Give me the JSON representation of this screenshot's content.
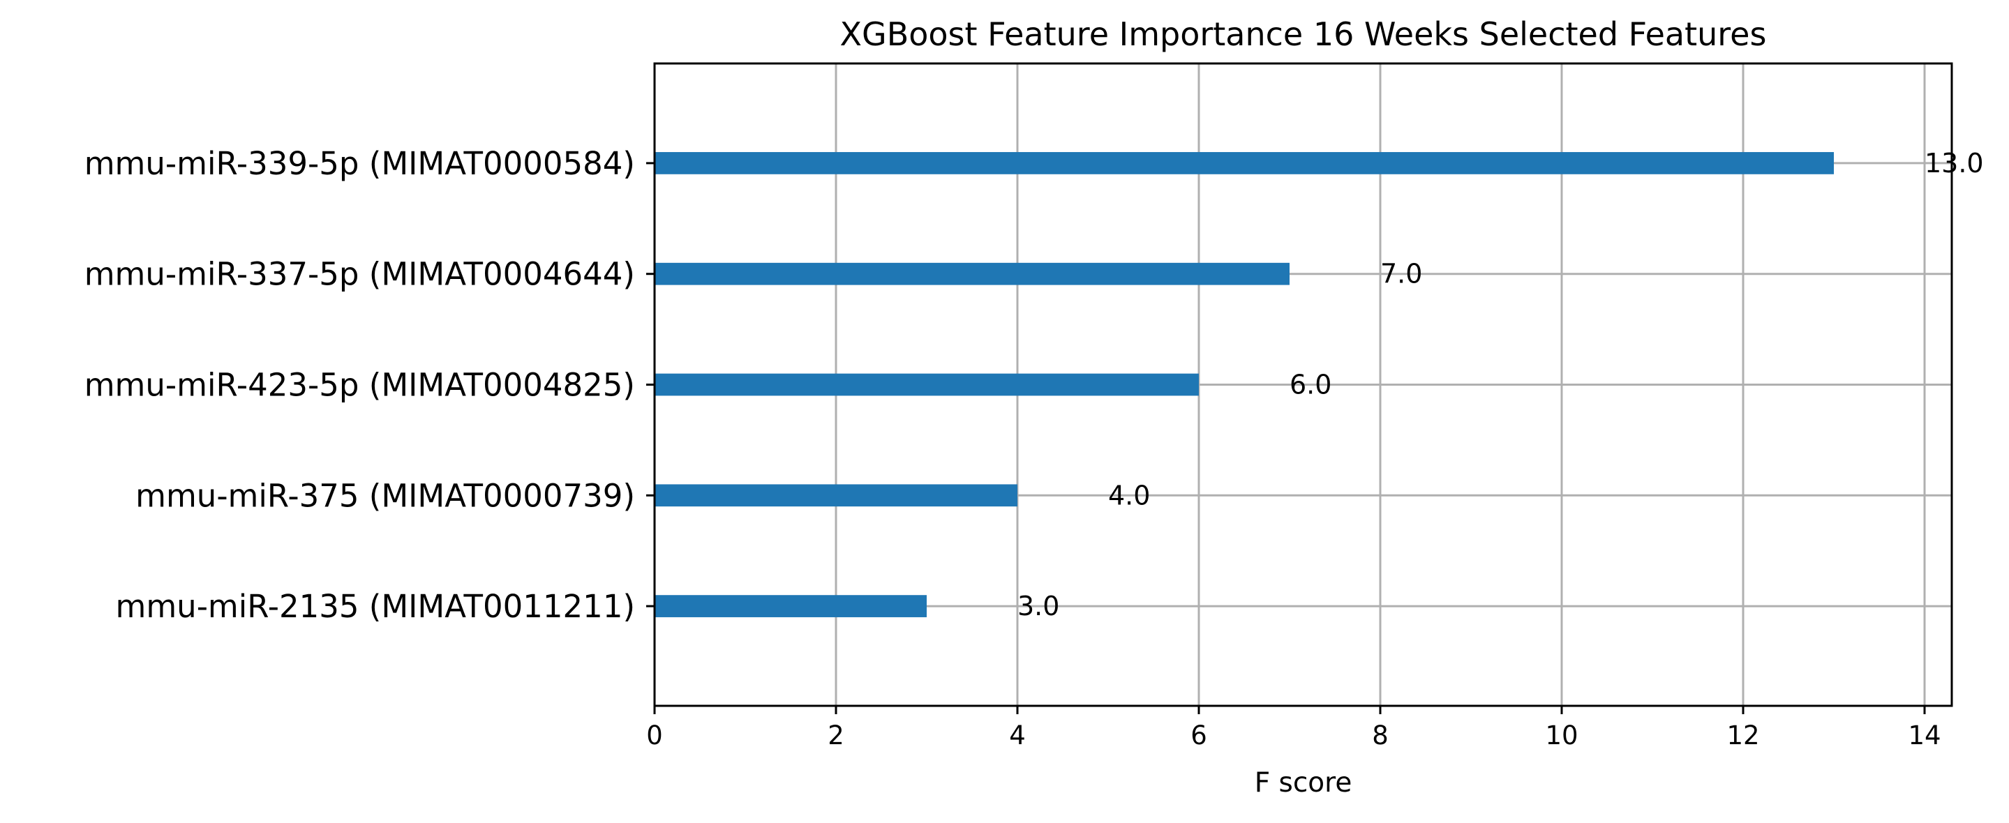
{
  "chart_data": {
    "type": "bar",
    "orientation": "horizontal",
    "title": "XGBoost Feature Importance 16 Weeks Selected Features",
    "xlabel": "F score",
    "ylabel": "",
    "categories": [
      "mmu-miR-2135 (MIMAT0011211)",
      "mmu-miR-375 (MIMAT0000739)",
      "mmu-miR-423-5p (MIMAT0004825)",
      "mmu-miR-337-5p (MIMAT0004644)",
      "mmu-miR-339-5p (MIMAT0000584)"
    ],
    "values": [
      3.0,
      4.0,
      6.0,
      7.0,
      13.0
    ],
    "data_labels": [
      "3.0",
      "4.0",
      "6.0",
      "7.0",
      "13.0"
    ],
    "xlim": [
      0,
      14.3
    ],
    "xticks": [
      0,
      2,
      4,
      6,
      8,
      10,
      12,
      14
    ],
    "xtick_labels": [
      "0",
      "2",
      "4",
      "6",
      "8",
      "10",
      "12",
      "14"
    ],
    "grid": true,
    "bar_color": "#1f77b4",
    "grid_color": "#b0b0b0"
  }
}
